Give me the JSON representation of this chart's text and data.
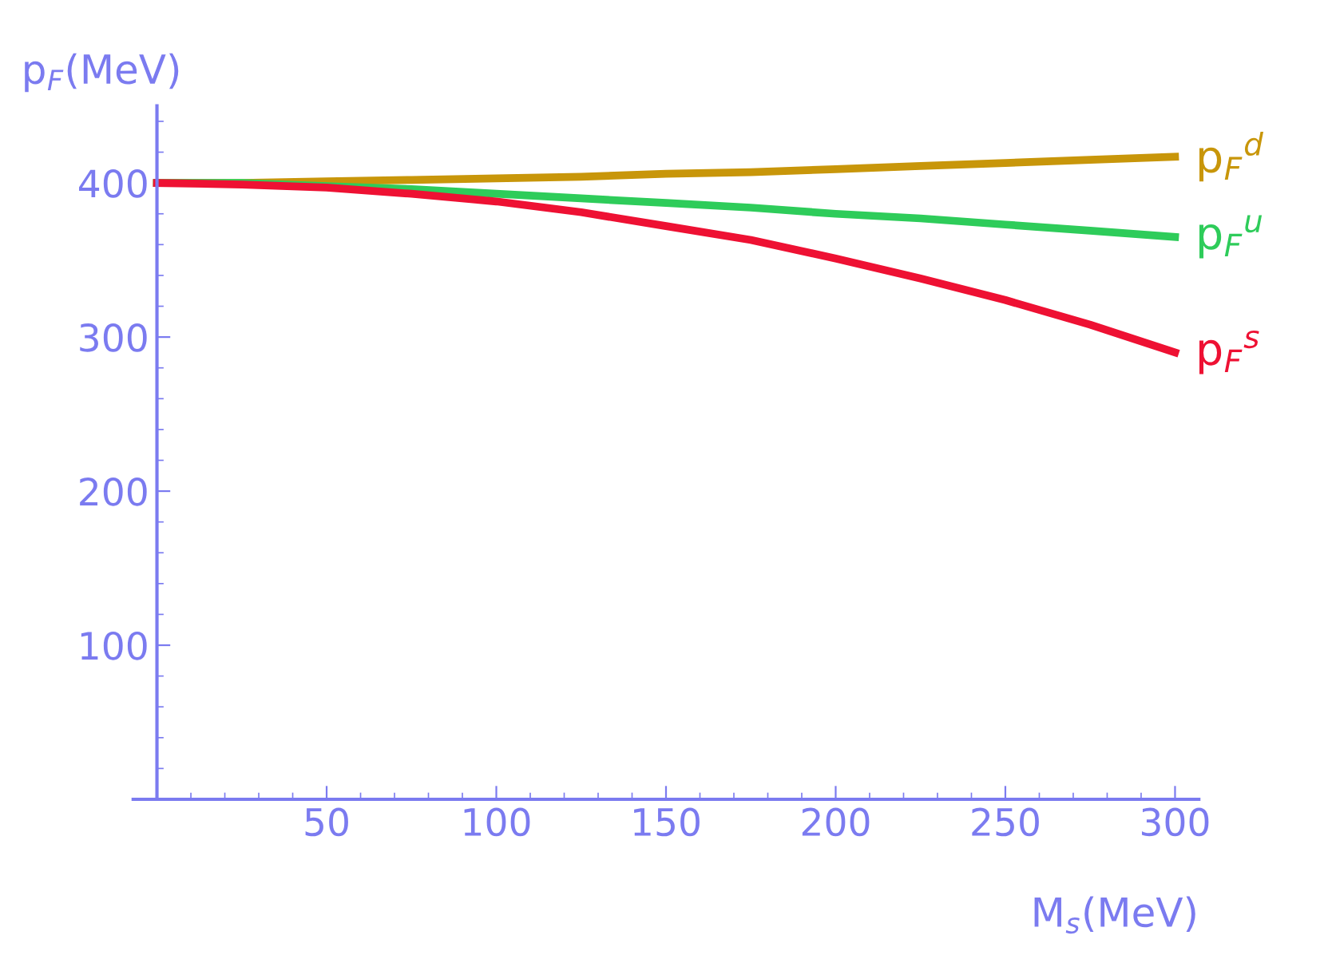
{
  "chart_data": {
    "type": "line",
    "xlabel": "M$_{s}$(MeV)",
    "ylabel": "p$_{F}$(MeV)",
    "x": [
      0,
      25,
      50,
      75,
      100,
      125,
      150,
      175,
      200,
      225,
      250,
      275,
      300
    ],
    "series": [
      {
        "name": "p$_{F}$$^{d}$",
        "color": "#c8960a",
        "values": [
          400,
          400,
          401,
          402,
          403,
          404,
          406,
          407,
          409,
          411,
          413,
          415,
          417
        ]
      },
      {
        "name": "p$_{F}$$^{u}$",
        "color": "#2ecc5a",
        "values": [
          400,
          400,
          398,
          396,
          393,
          390,
          387,
          384,
          380,
          377,
          373,
          369,
          365
        ]
      },
      {
        "name": "p$_{F}$$^{s}$",
        "color": "#ee1133",
        "values": [
          400,
          399,
          397,
          393,
          388,
          381,
          372,
          363,
          351,
          338,
          324,
          308,
          290
        ]
      }
    ],
    "xlim": [
      -7,
      307
    ],
    "ylim": [
      0,
      450
    ],
    "xticks": [
      50,
      100,
      150,
      200,
      250,
      300
    ],
    "yticks": [
      100,
      200,
      300,
      400
    ],
    "grid": false,
    "legend": false,
    "marker": "none",
    "line_style": "solid"
  }
}
